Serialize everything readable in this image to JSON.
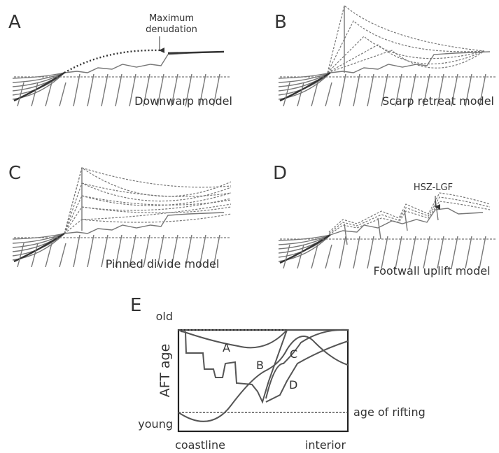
{
  "panels": [
    {
      "label": "A",
      "caption": "Downwarp model",
      "annotation": [
        "Maximum",
        "denudation"
      ]
    },
    {
      "label": "B",
      "caption": "Scarp retreat model"
    },
    {
      "label": "C",
      "caption": "Pinned divide model"
    },
    {
      "label": "D",
      "caption": "Footwall uplift model",
      "annotation": [
        "HSZ-LGF"
      ]
    }
  ],
  "graph": {
    "label": "E",
    "y_axis": "AFT age",
    "y_top": "old",
    "y_bottom": "young",
    "x_left": "coastline",
    "x_right": "interior",
    "reference_line": "age of rifting",
    "curves": [
      "A",
      "B",
      "C",
      "D"
    ]
  }
}
